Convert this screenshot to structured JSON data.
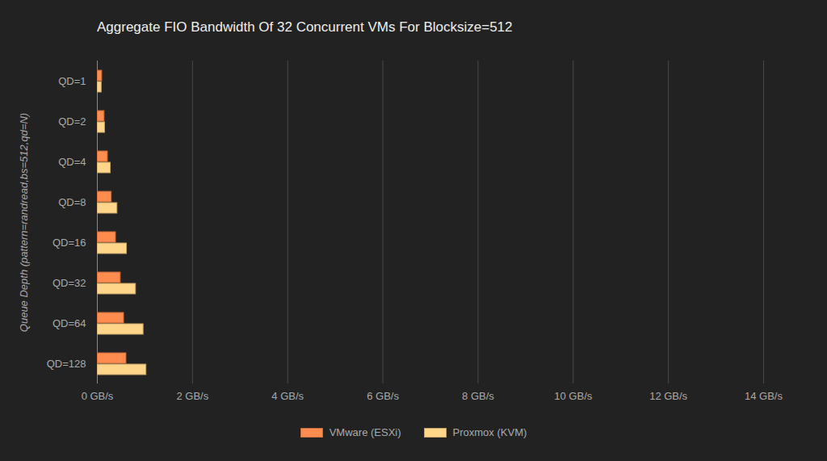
{
  "chart_data": {
    "type": "bar",
    "orientation": "horizontal",
    "title": "Aggregate FIO Bandwidth Of 32 Concurrent VMs For Blocksize=512",
    "y_label": "Queue Depth (pattern=randread,bs=512,qd=N)",
    "categories": [
      "QD=1",
      "QD=2",
      "QD=4",
      "QD=8",
      "QD=16",
      "QD=32",
      "QD=64",
      "QD=128"
    ],
    "series": [
      {
        "name": "VMware (ESXi)",
        "color": "#ff8c4f",
        "values": [
          0.1,
          0.15,
          0.22,
          0.3,
          0.39,
          0.49,
          0.56,
          0.61
        ]
      },
      {
        "name": "Proxmox (KVM)",
        "color": "#ffd58a",
        "values": [
          0.09,
          0.16,
          0.28,
          0.42,
          0.62,
          0.81,
          0.97,
          1.03
        ]
      }
    ],
    "xlim": [
      0,
      14
    ],
    "xticks": [
      {
        "value": 0,
        "label": "0 GB/s"
      },
      {
        "value": 2,
        "label": "2 GB/s"
      },
      {
        "value": 4,
        "label": "4 GB/s"
      },
      {
        "value": 6,
        "label": "6 GB/s"
      },
      {
        "value": 8,
        "label": "8 GB/s"
      },
      {
        "value": 10,
        "label": "10 GB/s"
      },
      {
        "value": 12,
        "label": "12 GB/s"
      },
      {
        "value": 14,
        "label": "14 GB/s"
      }
    ],
    "grid": true,
    "legend": "bottom"
  }
}
